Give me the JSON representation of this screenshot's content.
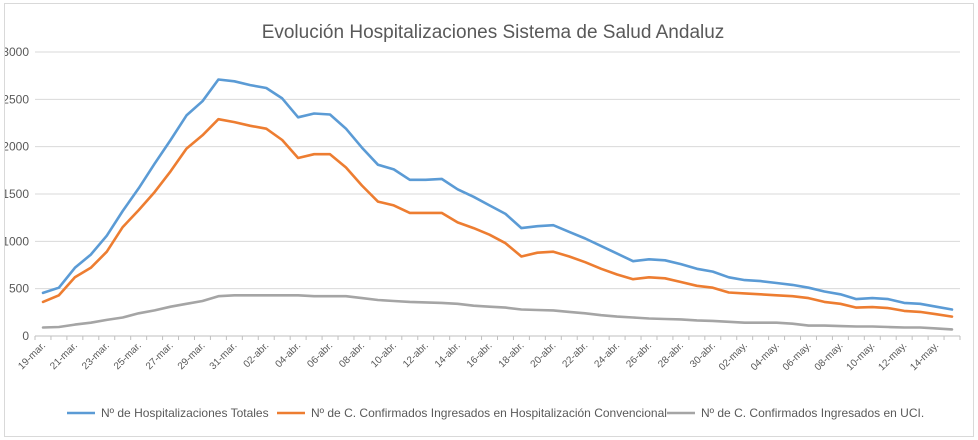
{
  "chart_data": {
    "type": "line",
    "title": "Evolución Hospitalizaciones Sistema de Salud Andaluz",
    "xlabel": "",
    "ylabel": "",
    "ylim": [
      0,
      3000
    ],
    "yticks": [
      0,
      500,
      1000,
      1500,
      2000,
      2500,
      3000
    ],
    "grid": true,
    "legend_position": "bottom",
    "x": [
      "19-mar.",
      "20-mar.",
      "21-mar.",
      "22-mar.",
      "23-mar.",
      "24-mar.",
      "25-mar.",
      "26-mar.",
      "27-mar.",
      "28-mar.",
      "29-mar.",
      "30-mar.",
      "31-mar.",
      "01-abr.",
      "02-abr.",
      "03-abr.",
      "04-abr.",
      "05-abr.",
      "06-abr.",
      "07-abr.",
      "08-abr.",
      "09-abr.",
      "10-abr.",
      "11-abr.",
      "12-abr.",
      "13-abr.",
      "14-abr.",
      "15-abr.",
      "16-abr.",
      "17-abr.",
      "18-abr.",
      "19-abr.",
      "20-abr.",
      "21-abr.",
      "22-abr.",
      "23-abr.",
      "24-abr.",
      "25-abr.",
      "26-abr.",
      "27-abr.",
      "28-abr.",
      "29-abr.",
      "30-abr.",
      "01-may.",
      "02-may.",
      "03-may.",
      "04-may.",
      "05-may.",
      "06-may.",
      "07-may.",
      "08-may.",
      "09-may.",
      "10-may.",
      "11-may.",
      "12-may.",
      "13-may.",
      "14-may.",
      "15-may."
    ],
    "x_tick_labels": [
      "19-mar.",
      "21-mar.",
      "23-mar.",
      "25-mar.",
      "27-mar.",
      "29-mar.",
      "31-mar.",
      "02-abr.",
      "04-abr.",
      "06-abr.",
      "08-abr.",
      "10-abr.",
      "12-abr.",
      "14-abr.",
      "16-abr.",
      "18-abr.",
      "20-abr.",
      "22-abr.",
      "24-abr.",
      "26-abr.",
      "28-abr.",
      "30-abr.",
      "02-may.",
      "04-may.",
      "06-may.",
      "08-may.",
      "10-may.",
      "12-may.",
      "14-may."
    ],
    "series": [
      {
        "name": "Nº de Hospitalizaciones Totales",
        "color": "#5b9bd5",
        "values": [
          455,
          510,
          720,
          860,
          1060,
          1320,
          1560,
          1820,
          2070,
          2330,
          2480,
          2710,
          2690,
          2650,
          2620,
          2510,
          2310,
          2350,
          2340,
          2190,
          1990,
          1810,
          1760,
          1650,
          1650,
          1660,
          1550,
          1470,
          1380,
          1290,
          1140,
          1160,
          1170,
          1100,
          1030,
          950,
          870,
          790,
          810,
          800,
          760,
          710,
          680,
          620,
          590,
          580,
          560,
          540,
          510,
          470,
          440,
          390,
          400,
          390,
          350,
          340,
          310,
          280
        ]
      },
      {
        "name": "Nº de C. Confirmados Ingresados en Hospitalización Convencional",
        "color": "#ed7d31",
        "values": [
          360,
          430,
          620,
          720,
          890,
          1150,
          1330,
          1520,
          1740,
          1980,
          2120,
          2290,
          2260,
          2220,
          2190,
          2070,
          1880,
          1920,
          1920,
          1780,
          1590,
          1420,
          1380,
          1300,
          1300,
          1300,
          1200,
          1140,
          1070,
          980,
          840,
          880,
          890,
          840,
          780,
          710,
          650,
          600,
          620,
          610,
          570,
          530,
          510,
          460,
          450,
          440,
          430,
          420,
          400,
          360,
          340,
          300,
          305,
          295,
          265,
          255,
          230,
          205
        ]
      },
      {
        "name": "Nº de C. Confirmados Ingresados en UCI.",
        "color": "#a5a5a5",
        "values": [
          90,
          95,
          120,
          140,
          170,
          195,
          240,
          270,
          310,
          340,
          370,
          420,
          430,
          430,
          430,
          430,
          430,
          420,
          420,
          420,
          400,
          380,
          370,
          360,
          355,
          350,
          340,
          320,
          310,
          300,
          280,
          275,
          270,
          255,
          240,
          220,
          205,
          195,
          185,
          180,
          175,
          165,
          160,
          150,
          140,
          140,
          140,
          130,
          110,
          110,
          105,
          100,
          100,
          95,
          90,
          90,
          80,
          70
        ]
      }
    ]
  }
}
